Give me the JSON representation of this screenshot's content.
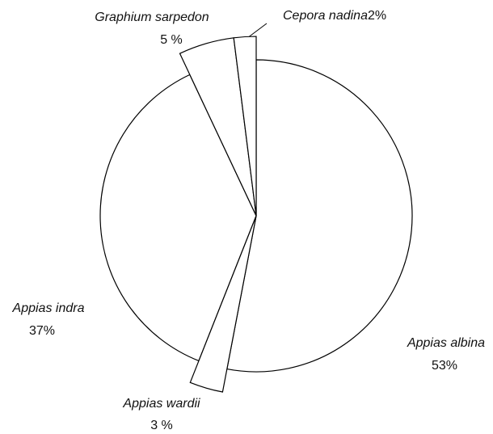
{
  "chart_data": {
    "type": "pie",
    "categories": [
      "Appias albina",
      "Appias wardii",
      "Appias indra",
      "Graphium sarpedon",
      "Cepora nadina"
    ],
    "values": [
      53,
      3,
      37,
      5,
      2
    ],
    "value_labels": [
      "53%",
      "3 %",
      "37%",
      "5 %",
      "2%"
    ],
    "color": "#ffffff"
  }
}
